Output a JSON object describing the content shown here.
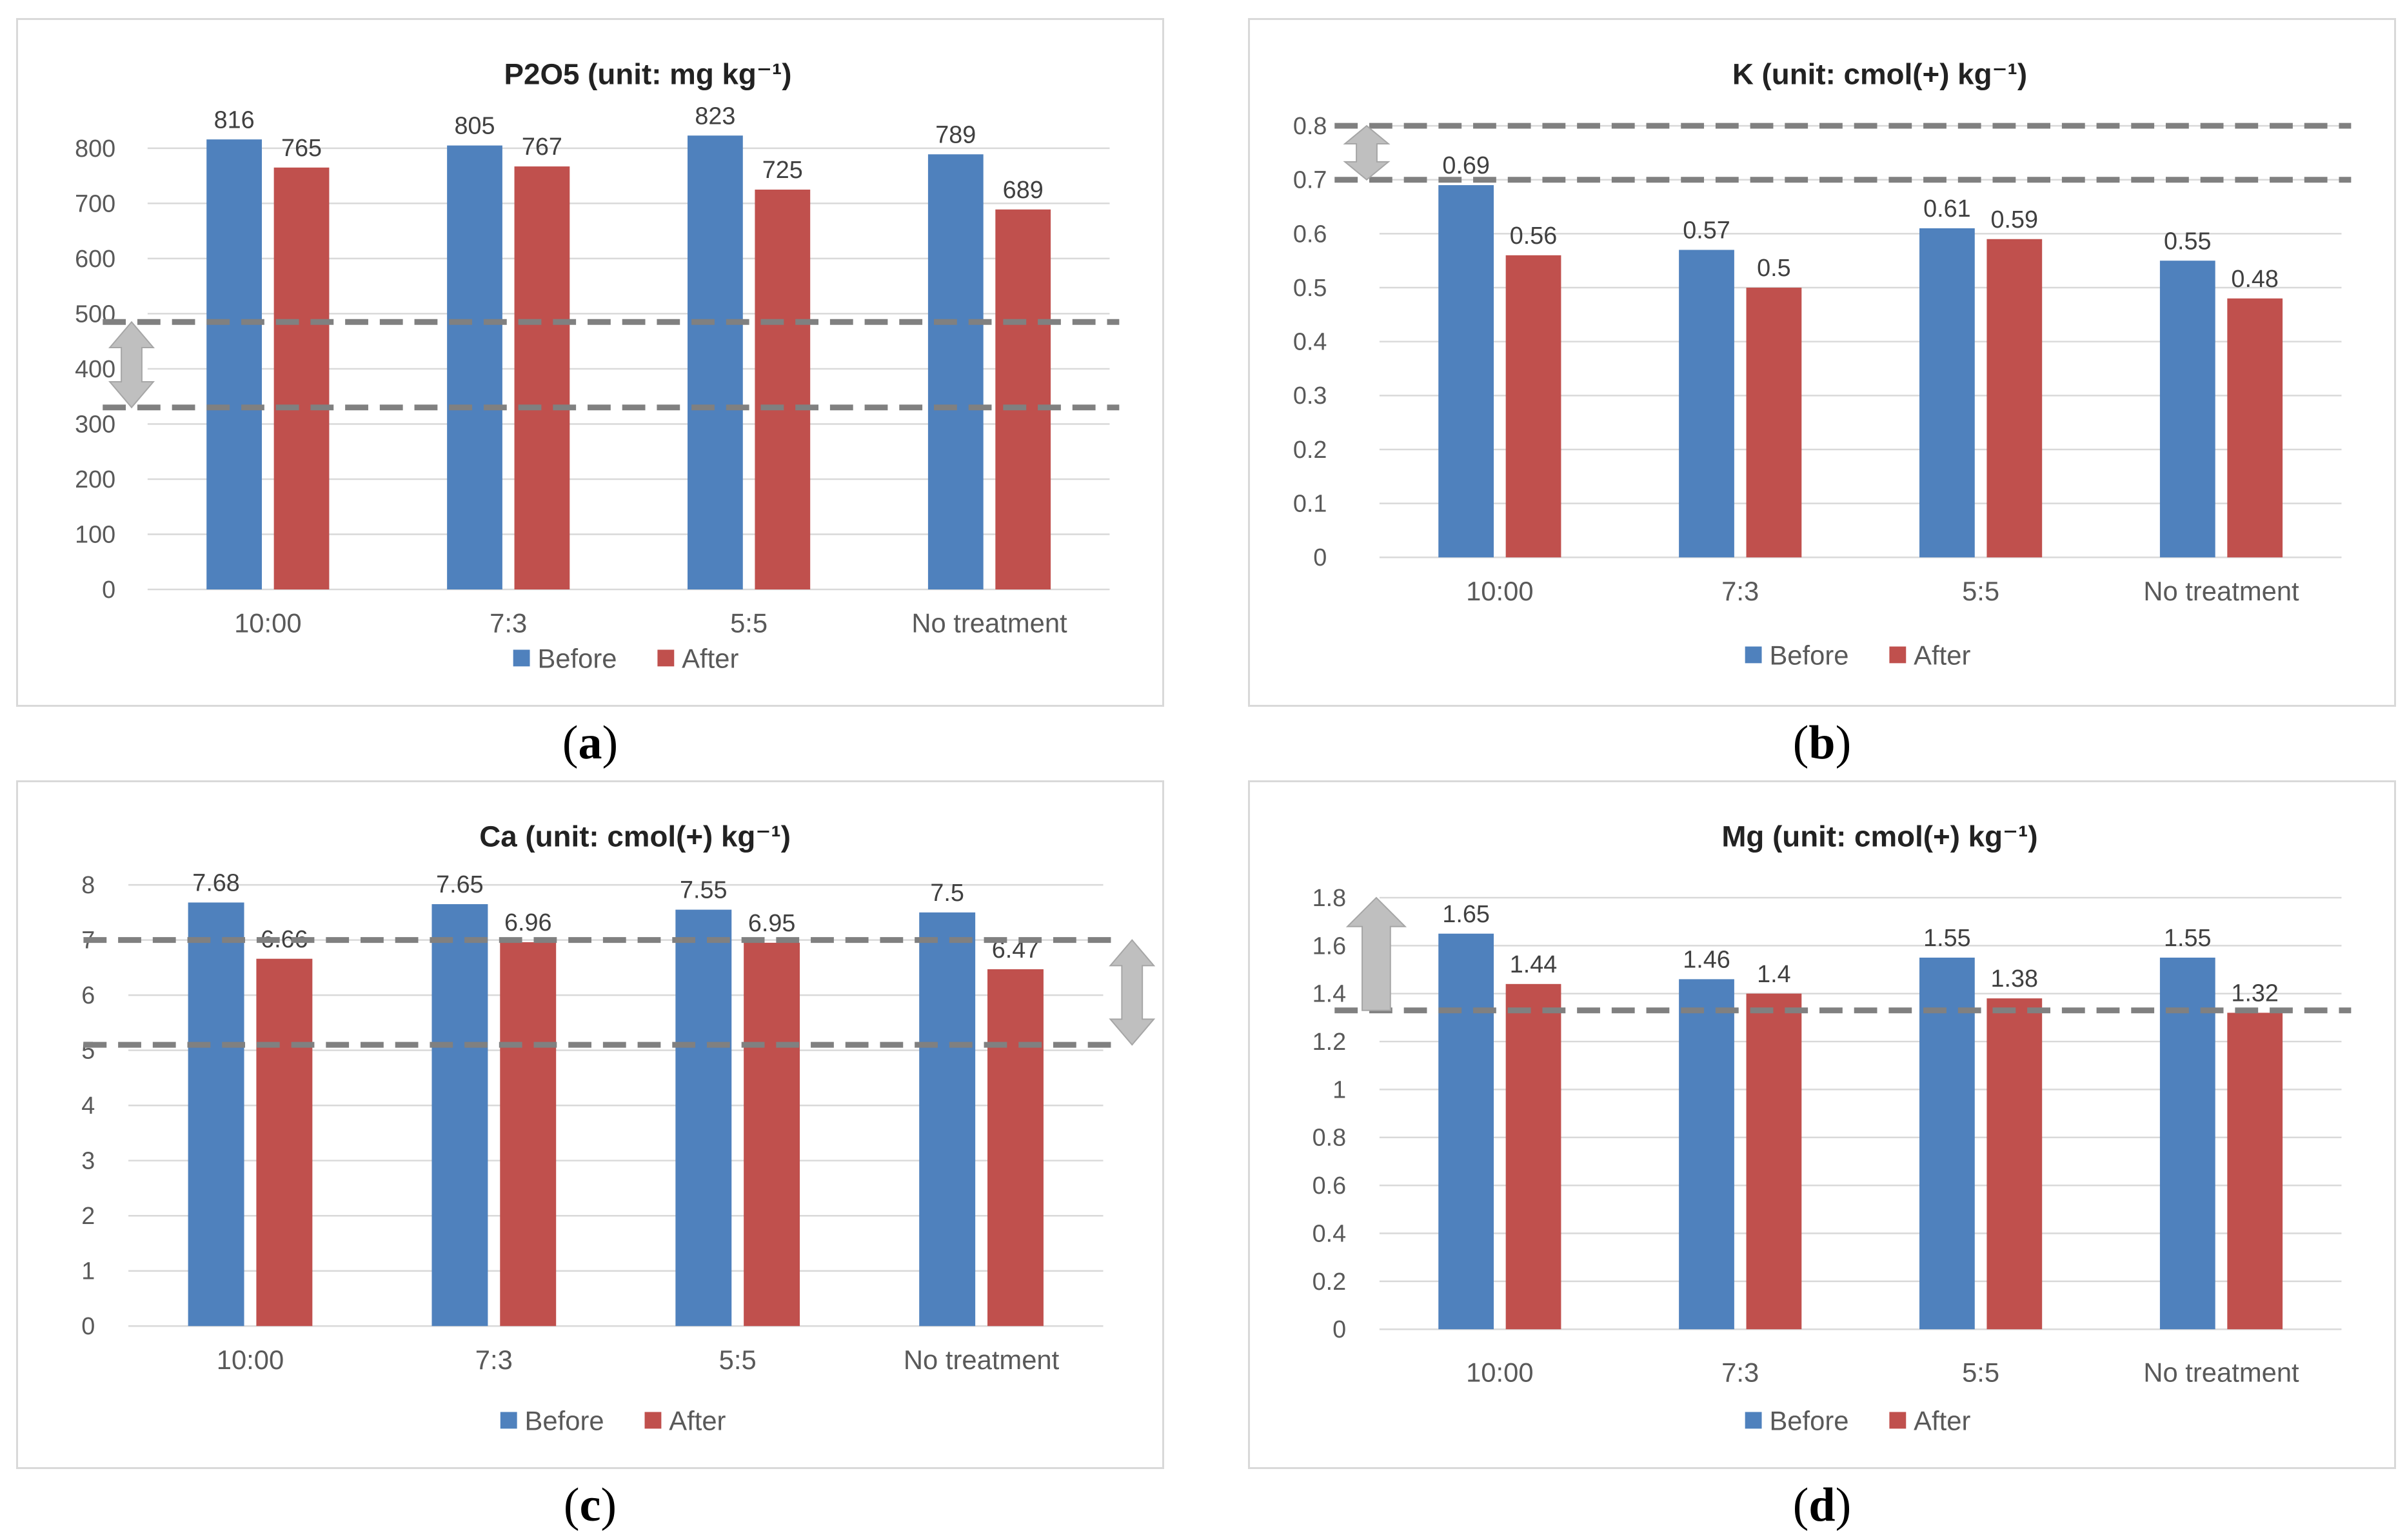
{
  "colors": {
    "before": "#4f81bd",
    "after": "#c0504d",
    "grid": "#d9d9d9",
    "ref": "#808080",
    "arrow": "#bfbfbf"
  },
  "legend": {
    "before": "Before",
    "after": "After"
  },
  "captions": [
    "a",
    "b",
    "c",
    "d"
  ],
  "chart_data": [
    {
      "type": "bar",
      "title": "P2O5 (unit: mg kg⁻¹)",
      "categories": [
        "10:00",
        "7:3",
        "5:5",
        "No treatment"
      ],
      "series": [
        {
          "name": "Before",
          "values": [
            816,
            805,
            823,
            789
          ]
        },
        {
          "name": "After",
          "values": [
            765,
            767,
            725,
            689
          ]
        }
      ],
      "ylim": [
        0,
        800
      ],
      "yticks": [
        "0",
        "100",
        "200",
        "300",
        "400",
        "500",
        "600",
        "700",
        "800"
      ],
      "reference_lines": [
        330,
        485
      ],
      "arrow": "double",
      "grid": true,
      "legend_position": "bottom"
    },
    {
      "type": "bar",
      "title": "K (unit: cmol(+) kg⁻¹)",
      "categories": [
        "10:00",
        "7:3",
        "5:5",
        "No treatment"
      ],
      "series": [
        {
          "name": "Before",
          "values": [
            0.69,
            0.57,
            0.61,
            0.55
          ]
        },
        {
          "name": "After",
          "values": [
            0.56,
            0.5,
            0.59,
            0.48
          ]
        }
      ],
      "ylim": [
        0,
        0.8
      ],
      "yticks": [
        "0",
        "0.1",
        "0.2",
        "0.3",
        "0.4",
        "0.5",
        "0.6",
        "0.7",
        "0.8"
      ],
      "reference_lines": [
        0.7,
        0.8
      ],
      "arrow": "double",
      "grid": true,
      "legend_position": "bottom"
    },
    {
      "type": "bar",
      "title": "Ca (unit: cmol(+) kg⁻¹)",
      "categories": [
        "10:00",
        "7:3",
        "5:5",
        "No treatment"
      ],
      "series": [
        {
          "name": "Before",
          "values": [
            7.68,
            7.65,
            7.55,
            7.5
          ]
        },
        {
          "name": "After",
          "values": [
            6.66,
            6.96,
            6.95,
            6.47
          ]
        }
      ],
      "ylim": [
        0,
        8
      ],
      "yticks": [
        "0",
        "1",
        "2",
        "3",
        "4",
        "5",
        "6",
        "7",
        "8"
      ],
      "reference_lines": [
        5.1,
        7.0
      ],
      "arrow": "double",
      "grid": true,
      "legend_position": "bottom"
    },
    {
      "type": "bar",
      "title": "Mg (unit: cmol(+) kg⁻¹)",
      "categories": [
        "10:00",
        "7:3",
        "5:5",
        "No treatment"
      ],
      "series": [
        {
          "name": "Before",
          "values": [
            1.65,
            1.46,
            1.55,
            1.55
          ]
        },
        {
          "name": "After",
          "values": [
            1.44,
            1.4,
            1.38,
            1.32
          ]
        }
      ],
      "ylim": [
        0,
        1.8
      ],
      "yticks": [
        "0",
        "0.2",
        "0.4",
        "0.6",
        "0.8",
        "1",
        "1.2",
        "1.4",
        "1.6",
        "1.8"
      ],
      "reference_lines": [
        1.33
      ],
      "arrow": "up",
      "grid": true,
      "legend_position": "bottom"
    }
  ]
}
